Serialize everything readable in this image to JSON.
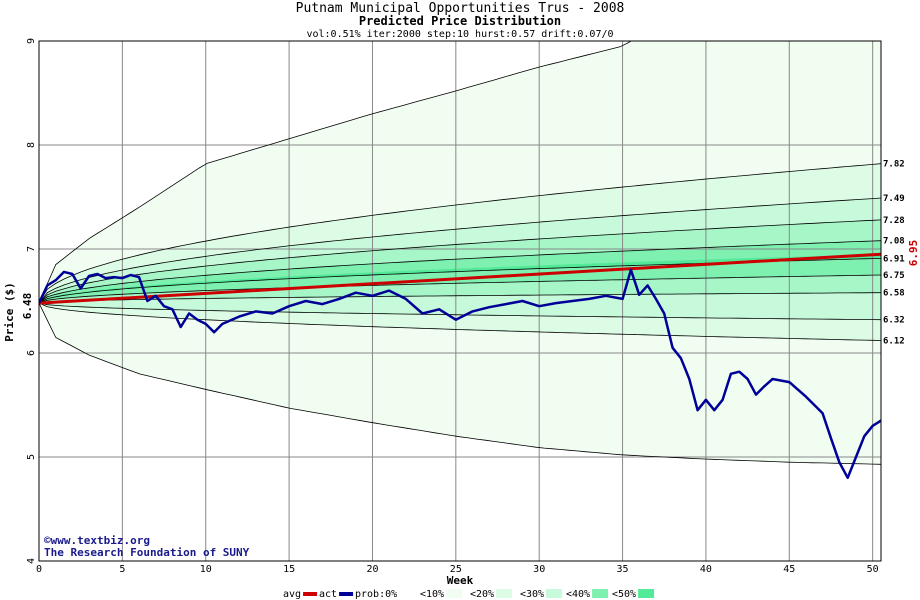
{
  "chart_data": {
    "type": "area",
    "title": "Putnam Municipal Opportunities Trus - 2008",
    "subtitle": "Predicted Price Distribution",
    "params": "vol:0.51% iter:2000 step:10 hurst:0.57 drift:0.07/0",
    "xlabel": "Week",
    "ylabel": "Price ($)",
    "xlim": [
      0,
      50.5
    ],
    "ylim": [
      4,
      9
    ],
    "x_ticks": [
      0,
      5,
      10,
      15,
      20,
      25,
      30,
      35,
      40,
      45,
      50
    ],
    "y_ticks": [
      4,
      5,
      6,
      7,
      8,
      9
    ],
    "start_price": "6.48",
    "final_avg_label": "6.95",
    "right_labels": [
      "7.82",
      "7.49",
      "7.28",
      "7.08",
      "6.91",
      "6.75",
      "6.58",
      "6.32",
      "6.12"
    ],
    "grid": true,
    "outer_band": {
      "upper_x": [
        0,
        1,
        3,
        6,
        10,
        15,
        20,
        25,
        30,
        35,
        35.5
      ],
      "upper_y": [
        6.48,
        6.85,
        7.1,
        7.4,
        7.82,
        8.06,
        8.3,
        8.52,
        8.75,
        8.95,
        9.0
      ],
      "lower_x": [
        0,
        1,
        3,
        6,
        10,
        15,
        20,
        25,
        30,
        35,
        40,
        45,
        50.5
      ],
      "lower_y": [
        6.48,
        6.15,
        5.98,
        5.8,
        5.65,
        5.47,
        5.33,
        5.2,
        5.09,
        5.02,
        4.98,
        4.95,
        4.93
      ]
    },
    "bands": [
      {
        "name": "<10%",
        "upper_end": 7.82,
        "lower_end": 6.12
      },
      {
        "name": "<20%",
        "upper_end": 7.49,
        "lower_end": 6.32
      },
      {
        "name": "<30%",
        "upper_end": 7.28,
        "lower_end": 6.58
      },
      {
        "name": "<40%",
        "upper_end": 7.08,
        "lower_end": 6.75
      },
      {
        "name": "<50%",
        "upper_end": 6.95,
        "lower_end": 6.91
      }
    ],
    "series": [
      {
        "name": "avg",
        "color": "#cc0000",
        "x": [
          0,
          50.5
        ],
        "y": [
          6.48,
          6.95
        ]
      },
      {
        "name": "act",
        "color": "#000099",
        "x": [
          0,
          0.5,
          1,
          1.5,
          2,
          2.5,
          3,
          3.5,
          4,
          4.5,
          5,
          5.5,
          6,
          6.5,
          7,
          7.5,
          8,
          8.5,
          9,
          9.5,
          10,
          10.5,
          11,
          12,
          13,
          14,
          15,
          16,
          17,
          18,
          19,
          20,
          21,
          22,
          23,
          24,
          25,
          26,
          27,
          28,
          29,
          30,
          31,
          32,
          33,
          34,
          35,
          35.5,
          36,
          36.5,
          37,
          37.5,
          38,
          38.5,
          39,
          39.5,
          40,
          40.5,
          41,
          41.5,
          42,
          42.5,
          43,
          43.5,
          44,
          45,
          46,
          47,
          47.5,
          48,
          48.5,
          49,
          49.5,
          50,
          50.5
        ],
        "y": [
          6.48,
          6.65,
          6.7,
          6.78,
          6.76,
          6.62,
          6.74,
          6.76,
          6.72,
          6.73,
          6.72,
          6.75,
          6.73,
          6.5,
          6.55,
          6.45,
          6.42,
          6.25,
          6.38,
          6.32,
          6.28,
          6.2,
          6.28,
          6.35,
          6.4,
          6.38,
          6.45,
          6.5,
          6.47,
          6.52,
          6.58,
          6.55,
          6.6,
          6.52,
          6.38,
          6.42,
          6.32,
          6.4,
          6.44,
          6.47,
          6.5,
          6.45,
          6.48,
          6.5,
          6.52,
          6.55,
          6.52,
          6.8,
          6.56,
          6.65,
          6.52,
          6.38,
          6.05,
          5.95,
          5.75,
          5.45,
          5.55,
          5.45,
          5.55,
          5.8,
          5.82,
          5.75,
          5.6,
          5.68,
          5.75,
          5.72,
          5.58,
          5.42,
          5.18,
          4.95,
          4.8,
          5.0,
          5.2,
          5.3,
          5.35
        ]
      }
    ],
    "credit_lines": [
      "©www.textbiz.org",
      "The Research Foundation of SUNY"
    ],
    "legend": [
      "avg",
      "act",
      "prob:0%",
      "<10%",
      "<20%",
      "<30%",
      "<40%",
      "<50%"
    ]
  }
}
